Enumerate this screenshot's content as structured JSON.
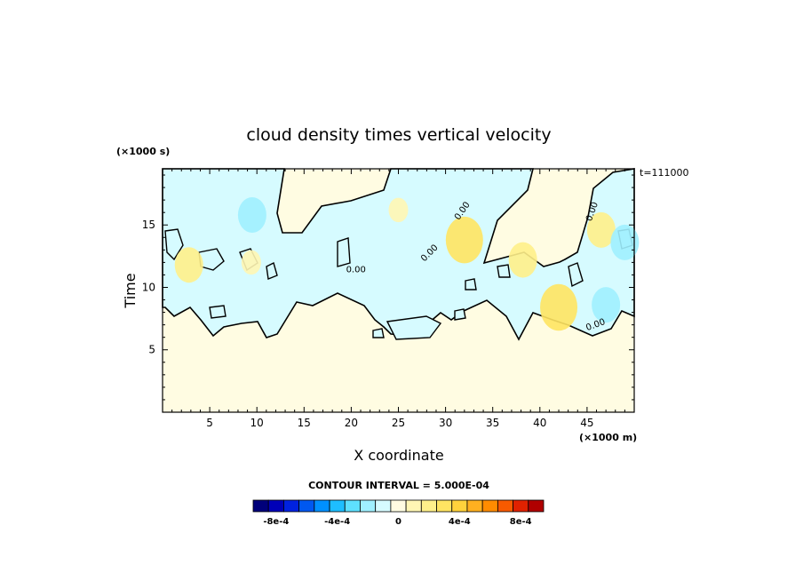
{
  "chart_data": {
    "type": "heatmap",
    "title": "cloud density times vertical velocity",
    "xlabel": "X coordinate",
    "ylabel": "Time",
    "x_unit_label": "(×1000 m)",
    "y_unit_label": "(×1000 s)",
    "time_stamp": "t=111000",
    "xlim": [
      0,
      50
    ],
    "ylim": [
      0,
      19.5
    ],
    "x_ticks": [
      5,
      10,
      15,
      20,
      25,
      30,
      35,
      40,
      45
    ],
    "y_ticks": [
      5,
      10,
      15
    ],
    "contour_label": "0.00",
    "contour_interval_text": "CONTOUR INTERVAL = 5.000E-04",
    "colorbar": {
      "levels": [
        -0.0009,
        -0.0008,
        -0.0007,
        -0.0006,
        -0.0005,
        -0.0004,
        -0.0003,
        -0.0002,
        -0.0001,
        0,
        0.0001,
        0.0002,
        0.0003,
        0.0004,
        0.0005,
        0.0006,
        0.0007,
        0.0008,
        0.0009
      ],
      "colors": [
        "#00007a",
        "#0000b8",
        "#0022e0",
        "#0058f0",
        "#0090ff",
        "#1ebeff",
        "#5ee0ff",
        "#a0f0ff",
        "#d6fbff",
        "#fffce2",
        "#fff6b4",
        "#fff08a",
        "#ffe462",
        "#ffd23c",
        "#ffb020",
        "#ff8c00",
        "#f85a00",
        "#e02200",
        "#b00000"
      ],
      "tick_labels": [
        {
          "value": -0.0008,
          "label": "-8e-4"
        },
        {
          "value": -0.0004,
          "label": "-4e-4"
        },
        {
          "value": 0,
          "label": "0"
        },
        {
          "value": 0.0004,
          "label": "4e-4"
        },
        {
          "value": 0.0008,
          "label": "8e-4"
        }
      ]
    },
    "background_color": "#fffce2",
    "negative_region_color": "#d6fbff",
    "anomalies": [
      {
        "x": 9.5,
        "y": 15.8,
        "value": -0.0002
      },
      {
        "x": 2.8,
        "y": 11.8,
        "value": 0.0002
      },
      {
        "x": 9.4,
        "y": 12.0,
        "value": 0.0001
      },
      {
        "x": 25.0,
        "y": 16.2,
        "value": 0.0001
      },
      {
        "x": 32.0,
        "y": 13.8,
        "value": 0.0003
      },
      {
        "x": 38.2,
        "y": 12.2,
        "value": 0.0002
      },
      {
        "x": 42.0,
        "y": 8.4,
        "value": 0.0003
      },
      {
        "x": 46.5,
        "y": 14.6,
        "value": 0.0002
      },
      {
        "x": 47.0,
        "y": 8.6,
        "value": -0.0002
      },
      {
        "x": 49.0,
        "y": 13.6,
        "value": -0.0002
      }
    ]
  }
}
